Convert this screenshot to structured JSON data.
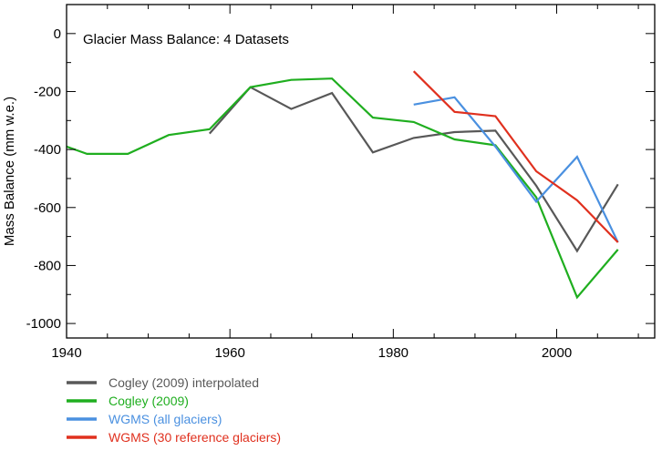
{
  "chart_data": {
    "type": "line",
    "title": "Glacier Mass Balance: 4 Datasets",
    "xlabel": "",
    "ylabel": "Mass Balance (mm w.e.)",
    "xlim": [
      1940,
      2012
    ],
    "ylim": [
      -1050,
      100
    ],
    "xticks": [
      1940,
      1960,
      1980,
      2000
    ],
    "yticks": [
      0,
      -200,
      -400,
      -600,
      -800,
      -1000
    ],
    "grid": false,
    "legend_position": "bottom-left",
    "series": [
      {
        "name": "Cogley (2009) interpolated",
        "color": "#585858",
        "x": [
          1957.5,
          1962.5,
          1967.5,
          1972.5,
          1977.5,
          1982.5,
          1987.5,
          1992.5,
          1997.5,
          2002.5,
          2007.5
        ],
        "y": [
          -345,
          -185,
          -260,
          -205,
          -410,
          -360,
          -340,
          -335,
          -525,
          -750,
          -520
        ]
      },
      {
        "name": "Cogley (2009)",
        "color": "#1fae1f",
        "x": [
          1940,
          1942.5,
          1947.5,
          1952.5,
          1957.5,
          1962.5,
          1967.5,
          1972.5,
          1977.5,
          1982.5,
          1987.5,
          1992.5,
          1997.5,
          2002.5,
          2007.5
        ],
        "y": [
          -390,
          -415,
          -415,
          -350,
          -330,
          -185,
          -160,
          -155,
          -290,
          -305,
          -365,
          -385,
          -565,
          -910,
          -745
        ]
      },
      {
        "name": "WGMS (all glaciers)",
        "color": "#4a90e0",
        "x": [
          1982.5,
          1987.5,
          1992.5,
          1997.5,
          2002.5,
          2007.5
        ],
        "y": [
          -245,
          -220,
          -390,
          -580,
          -425,
          -720
        ]
      },
      {
        "name": "WGMS (30 reference glaciers)",
        "color": "#e0301e",
        "x": [
          1982.5,
          1987.5,
          1992.5,
          1997.5,
          2002.5,
          2007.5
        ],
        "y": [
          -130,
          -270,
          -285,
          -475,
          -575,
          -720
        ]
      }
    ]
  }
}
